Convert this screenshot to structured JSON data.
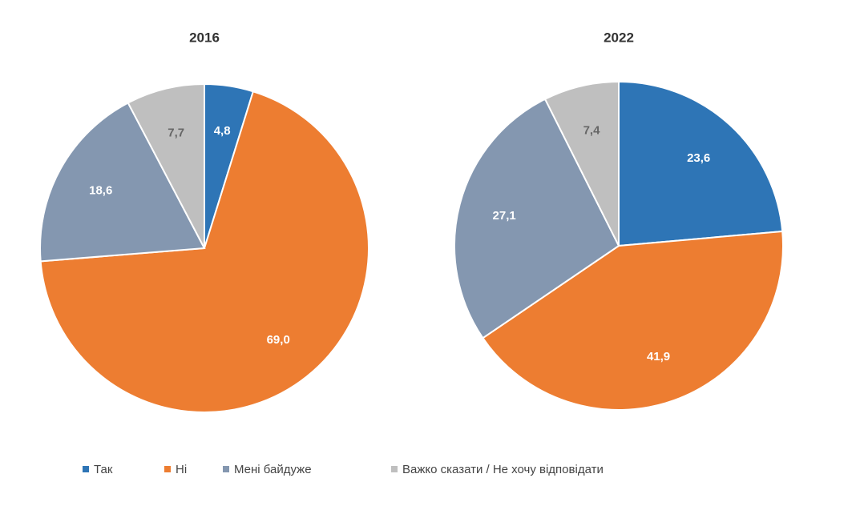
{
  "chart_data": [
    {
      "type": "pie",
      "title": "2016",
      "values": [
        4.8,
        69.0,
        18.6,
        7.7
      ],
      "value_labels": [
        "4,8",
        "69,0",
        "18,6",
        "7,7"
      ]
    },
    {
      "type": "pie",
      "title": "2022",
      "values": [
        23.6,
        41.9,
        27.1,
        7.4
      ],
      "value_labels": [
        "23,6",
        "41,9",
        "27,1",
        "7,4"
      ]
    }
  ],
  "legend": {
    "labels": [
      "Так",
      "Ні",
      "Мені байдуже",
      "Важко сказати / Не хочу відповідати"
    ],
    "colors": [
      "#2e75b6",
      "#ed7d31",
      "#8497b0",
      "#bfbfbf"
    ]
  }
}
